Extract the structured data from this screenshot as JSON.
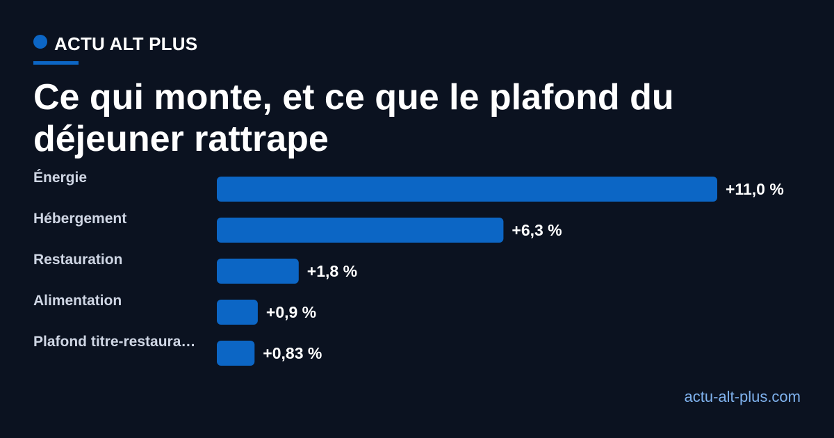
{
  "brand": {
    "name": "ACTU ALT PLUS",
    "accent_color": "#0c66c5"
  },
  "title": "Ce qui monte, et ce que le plafond du déjeuner rattrape",
  "chart_data": {
    "type": "bar",
    "orientation": "horizontal",
    "categories": [
      "Énergie",
      "Hébergement",
      "Restauration",
      "Alimentation",
      "Plafond titre-restaura…"
    ],
    "values": [
      11.0,
      6.3,
      1.8,
      0.9,
      0.83
    ],
    "value_labels": [
      "+11,0 %",
      "+6,3 %",
      "+1,8 %",
      "+0,9 %",
      "+0,83 %"
    ],
    "bar_color": "#0c66c5",
    "grid": false,
    "legend": "none"
  },
  "footer": {
    "url": "actu-alt-plus.com"
  }
}
